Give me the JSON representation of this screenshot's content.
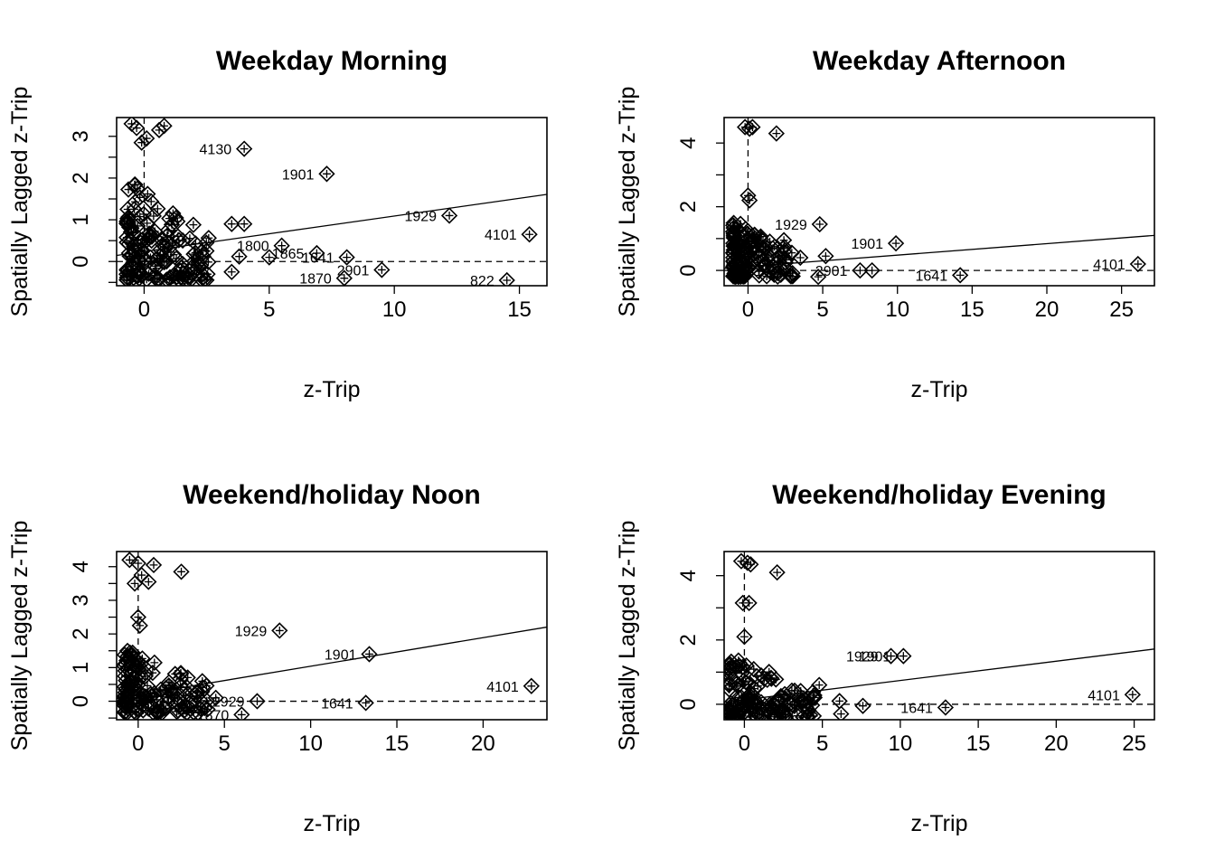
{
  "chart_data": [
    {
      "type": "scatter",
      "title": "Weekday Morning",
      "xlabel": "z-Trip",
      "ylabel": "Spatially Lagged z-Trip",
      "xlim": [
        -1.1,
        16.1
      ],
      "ylim": [
        -0.58,
        3.45
      ],
      "xticks": [
        0,
        5,
        10,
        15
      ],
      "yticks": [
        0,
        1,
        2,
        3
      ],
      "grid": false,
      "legend": "none",
      "regression_line": {
        "slope": 0.085,
        "intercept": 0.24
      },
      "reference_lines": {
        "x": 0,
        "y": 0
      },
      "cluster": {
        "x_range": [
          -0.7,
          2.6
        ],
        "y_range": [
          -0.45,
          2.0
        ],
        "count": 150,
        "seed": 11
      },
      "points": [
        {
          "x": -0.5,
          "y": 3.3,
          "label": ""
        },
        {
          "x": -0.3,
          "y": 3.2,
          "label": ""
        },
        {
          "x": 0.6,
          "y": 3.15,
          "label": ""
        },
        {
          "x": 0.8,
          "y": 3.25,
          "label": ""
        },
        {
          "x": -0.1,
          "y": 2.85,
          "label": ""
        },
        {
          "x": 0.1,
          "y": 2.95,
          "label": ""
        },
        {
          "x": 4.0,
          "y": 2.7,
          "label": "4130"
        },
        {
          "x": 7.3,
          "y": 2.1,
          "label": "1901"
        },
        {
          "x": 12.2,
          "y": 1.1,
          "label": "1929"
        },
        {
          "x": 15.4,
          "y": 0.65,
          "label": "4101"
        },
        {
          "x": 5.5,
          "y": 0.38,
          "label": "1800"
        },
        {
          "x": 6.9,
          "y": 0.2,
          "label": "1865"
        },
        {
          "x": 8.1,
          "y": 0.1,
          "label": "1641"
        },
        {
          "x": 9.5,
          "y": -0.2,
          "label": "2901"
        },
        {
          "x": 8.0,
          "y": -0.4,
          "label": "1870"
        },
        {
          "x": 14.5,
          "y": -0.45,
          "label": "822"
        },
        {
          "x": 3.5,
          "y": 0.9,
          "label": ""
        },
        {
          "x": 4.0,
          "y": 0.9,
          "label": ""
        },
        {
          "x": 3.8,
          "y": 0.12,
          "label": ""
        },
        {
          "x": 5.0,
          "y": 0.1,
          "label": ""
        },
        {
          "x": 3.5,
          "y": -0.25,
          "label": ""
        }
      ]
    },
    {
      "type": "scatter",
      "title": "Weekday Afternoon",
      "xlabel": "z-Trip",
      "ylabel": "Spatially Lagged z-Trip",
      "xlim": [
        -1.6,
        27.2
      ],
      "ylim": [
        -0.48,
        4.8
      ],
      "xticks": [
        0,
        5,
        10,
        15,
        20,
        25
      ],
      "yticks": [
        0,
        2,
        4
      ],
      "grid": false,
      "legend": "none",
      "regression_line": {
        "slope": 0.036,
        "intercept": 0.12
      },
      "reference_lines": {
        "x": 0,
        "y": 0
      },
      "cluster": {
        "x_range": [
          -1.0,
          3.0
        ],
        "y_range": [
          -0.2,
          1.6
        ],
        "count": 130,
        "seed": 23
      },
      "points": [
        {
          "x": -0.2,
          "y": 4.5,
          "label": ""
        },
        {
          "x": 0.1,
          "y": 4.45,
          "label": ""
        },
        {
          "x": 0.3,
          "y": 4.5,
          "label": ""
        },
        {
          "x": 1.9,
          "y": 4.3,
          "label": ""
        },
        {
          "x": 0.0,
          "y": 2.35,
          "label": ""
        },
        {
          "x": 0.1,
          "y": 2.2,
          "label": ""
        },
        {
          "x": 4.8,
          "y": 1.45,
          "label": "1929"
        },
        {
          "x": 9.9,
          "y": 0.85,
          "label": "1901"
        },
        {
          "x": 26.1,
          "y": 0.2,
          "label": "4101"
        },
        {
          "x": 14.2,
          "y": -0.15,
          "label": "1641"
        },
        {
          "x": 7.5,
          "y": 0.0,
          "label": "2901"
        },
        {
          "x": 8.3,
          "y": 0.0,
          "label": ""
        },
        {
          "x": 2.4,
          "y": 0.95,
          "label": ""
        },
        {
          "x": 5.2,
          "y": 0.45,
          "label": ""
        },
        {
          "x": 4.7,
          "y": -0.2,
          "label": ""
        },
        {
          "x": 3.5,
          "y": 0.4,
          "label": ""
        }
      ]
    },
    {
      "type": "scatter",
      "title": "Weekend/holiday Noon",
      "xlabel": "z-Trip",
      "ylabel": "Spatially Lagged z-Trip",
      "xlim": [
        -1.25,
        23.7
      ],
      "ylim": [
        -0.55,
        4.45
      ],
      "xticks": [
        0,
        5,
        10,
        15,
        20
      ],
      "yticks": [
        0,
        1,
        2,
        3,
        4
      ],
      "grid": false,
      "legend": "none",
      "regression_line": {
        "slope": 0.085,
        "intercept": 0.19
      },
      "reference_lines": {
        "x": 0,
        "y": 0
      },
      "cluster": {
        "x_range": [
          -0.8,
          4.2
        ],
        "y_range": [
          -0.35,
          1.55
        ],
        "count": 140,
        "seed": 37
      },
      "points": [
        {
          "x": -0.5,
          "y": 4.2,
          "label": ""
        },
        {
          "x": 0.0,
          "y": 4.1,
          "label": ""
        },
        {
          "x": 0.9,
          "y": 4.05,
          "label": ""
        },
        {
          "x": 2.5,
          "y": 3.85,
          "label": ""
        },
        {
          "x": 0.2,
          "y": 3.75,
          "label": ""
        },
        {
          "x": -0.2,
          "y": 3.5,
          "label": ""
        },
        {
          "x": 0.6,
          "y": 3.55,
          "label": ""
        },
        {
          "x": 0.0,
          "y": 2.5,
          "label": ""
        },
        {
          "x": 0.1,
          "y": 2.25,
          "label": ""
        },
        {
          "x": 8.2,
          "y": 2.1,
          "label": "1929"
        },
        {
          "x": 13.4,
          "y": 1.4,
          "label": "1901"
        },
        {
          "x": 22.8,
          "y": 0.45,
          "label": "4101"
        },
        {
          "x": 13.2,
          "y": -0.05,
          "label": "1641"
        },
        {
          "x": 6.9,
          "y": 0.0,
          "label": "2929"
        },
        {
          "x": 6.0,
          "y": -0.4,
          "label": "1870"
        },
        {
          "x": 4.5,
          "y": 0.1,
          "label": ""
        }
      ]
    },
    {
      "type": "scatter",
      "title": "Weekend/holiday Evening",
      "xlabel": "z-Trip",
      "ylabel": "Spatially Lagged z-Trip",
      "xlim": [
        -1.3,
        26.3
      ],
      "ylim": [
        -0.48,
        4.75
      ],
      "xticks": [
        0,
        5,
        10,
        15,
        20,
        25
      ],
      "yticks": [
        0,
        2,
        4
      ],
      "grid": false,
      "legend": "none",
      "regression_line": {
        "slope": 0.06,
        "intercept": 0.14
      },
      "reference_lines": {
        "x": 0,
        "y": 0
      },
      "cluster": {
        "x_range": [
          -1.0,
          4.5
        ],
        "y_range": [
          -0.4,
          1.5
        ],
        "count": 130,
        "seed": 51
      },
      "points": [
        {
          "x": -0.2,
          "y": 4.45,
          "label": ""
        },
        {
          "x": 0.2,
          "y": 4.4,
          "label": ""
        },
        {
          "x": 0.4,
          "y": 4.35,
          "label": ""
        },
        {
          "x": 2.1,
          "y": 4.1,
          "label": ""
        },
        {
          "x": -0.1,
          "y": 3.15,
          "label": ""
        },
        {
          "x": 0.3,
          "y": 3.15,
          "label": ""
        },
        {
          "x": 0.0,
          "y": 2.1,
          "label": ""
        },
        {
          "x": 9.4,
          "y": 1.5,
          "label": "1929"
        },
        {
          "x": 10.2,
          "y": 1.5,
          "label": "1901"
        },
        {
          "x": 24.9,
          "y": 0.3,
          "label": "4101"
        },
        {
          "x": 12.9,
          "y": -0.1,
          "label": "1641"
        },
        {
          "x": 7.6,
          "y": -0.05,
          "label": ""
        },
        {
          "x": 6.2,
          "y": -0.3,
          "label": ""
        },
        {
          "x": 4.8,
          "y": 0.6,
          "label": ""
        },
        {
          "x": 6.1,
          "y": 0.1,
          "label": ""
        }
      ]
    }
  ]
}
